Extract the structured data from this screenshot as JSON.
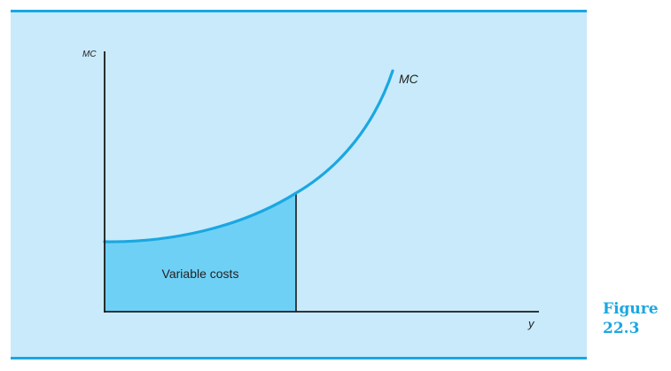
{
  "figure": {
    "label_word": "Figure",
    "label_number": "22.3"
  },
  "diagram": {
    "y_axis_label": "MC",
    "x_axis_label": "y",
    "curve_label": "MC",
    "area_label": "Variable costs",
    "colors": {
      "panel": "#c8eafb",
      "rule": "#1aa7e1",
      "curve": "#1aa7e1",
      "area_fill": "#6fd0f6",
      "axis": "#1a1a1a",
      "caption": "#1aa7e1"
    }
  }
}
